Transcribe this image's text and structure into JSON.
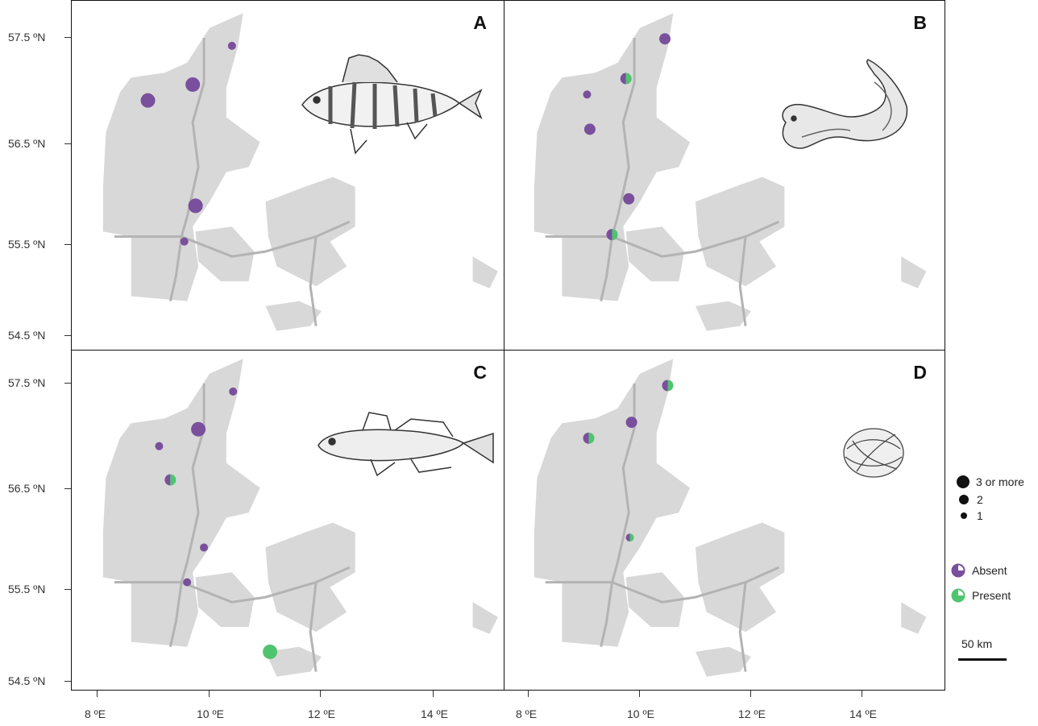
{
  "panels": [
    {
      "label": "A",
      "species_icon": "perch-illustration",
      "sites": [
        {
          "lon": 10.4,
          "lat": 57.42,
          "count": 1,
          "status": "absent"
        },
        {
          "lon": 9.7,
          "lat": 57.03,
          "count": 3,
          "status": "absent"
        },
        {
          "lon": 8.9,
          "lat": 56.87,
          "count": 3,
          "status": "absent"
        },
        {
          "lon": 9.75,
          "lat": 55.81,
          "count": 3,
          "status": "absent"
        },
        {
          "lon": 9.55,
          "lat": 55.45,
          "count": 1,
          "status": "absent"
        }
      ]
    },
    {
      "label": "B",
      "species_icon": "eel-illustration",
      "sites": [
        {
          "lon": 10.45,
          "lat": 57.49,
          "count": 2,
          "status": "absent"
        },
        {
          "lon": 9.75,
          "lat": 57.09,
          "count": 2,
          "status": "mixed"
        },
        {
          "lon": 9.05,
          "lat": 56.93,
          "count": 1,
          "status": "absent"
        },
        {
          "lon": 9.1,
          "lat": 56.58,
          "count": 2,
          "status": "absent"
        },
        {
          "lon": 9.8,
          "lat": 55.88,
          "count": 2,
          "status": "absent"
        },
        {
          "lon": 9.5,
          "lat": 55.52,
          "count": 2,
          "status": "mixed"
        }
      ]
    },
    {
      "label": "C",
      "species_icon": "goby-illustration",
      "sites": [
        {
          "lon": 10.42,
          "lat": 57.42,
          "count": 1,
          "status": "absent"
        },
        {
          "lon": 9.8,
          "lat": 57.04,
          "count": 3,
          "status": "absent"
        },
        {
          "lon": 9.1,
          "lat": 56.87,
          "count": 1,
          "status": "absent"
        },
        {
          "lon": 9.3,
          "lat": 56.53,
          "count": 2,
          "status": "mixed"
        },
        {
          "lon": 9.9,
          "lat": 55.85,
          "count": 1,
          "status": "absent"
        },
        {
          "lon": 9.6,
          "lat": 55.5,
          "count": 1,
          "status": "absent"
        },
        {
          "lon": 11.08,
          "lat": 54.8,
          "count": 3,
          "status": "present"
        }
      ]
    },
    {
      "label": "D",
      "species_icon": "mussel-illustration",
      "sites": [
        {
          "lon": 10.5,
          "lat": 57.48,
          "count": 2,
          "status": "mixed"
        },
        {
          "lon": 9.85,
          "lat": 57.11,
          "count": 2,
          "status": "absent"
        },
        {
          "lon": 9.08,
          "lat": 56.95,
          "count": 2,
          "status": "mixed"
        },
        {
          "lon": 9.82,
          "lat": 55.95,
          "count": 1,
          "status": "mixed"
        }
      ]
    }
  ],
  "lat_labels": [
    "57.5 ºN",
    "56.5 ºN",
    "55.5 ºN",
    "54.5 ºN"
  ],
  "lon_labels": [
    "8 ºE",
    "10 ºE",
    "12 ºE",
    "14 ºE"
  ],
  "legend": {
    "size_items": [
      {
        "label": "3 or more",
        "count": 3
      },
      {
        "label": "2",
        "count": 2
      },
      {
        "label": "1",
        "count": 1
      }
    ],
    "status_items": [
      {
        "label": "Absent",
        "status": "absent"
      },
      {
        "label": "Present",
        "status": "present"
      }
    ]
  },
  "scale_bar": {
    "label": "50 km"
  },
  "colors": {
    "absent": "#7a4f9c",
    "present": "#4fc46e",
    "land": "#d8d8d8",
    "road": "#b3b3b3",
    "background": "#ffffff"
  }
}
